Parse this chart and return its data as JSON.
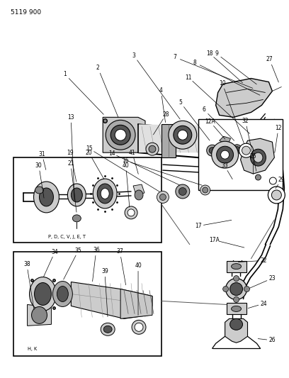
{
  "fig_id": "5119 900",
  "bg_color": "#ffffff",
  "fig_width": 4.08,
  "fig_height": 5.33,
  "dpi": 100,
  "label_fs": 5.5,
  "small_label_fs": 4.8,
  "box1_label": "P, D, C, V, J, E, T",
  "box2_label": "H, K",
  "gray_dark": "#555555",
  "gray_med": "#888888",
  "gray_light": "#cccccc",
  "gray_body": "#aaaaaa"
}
